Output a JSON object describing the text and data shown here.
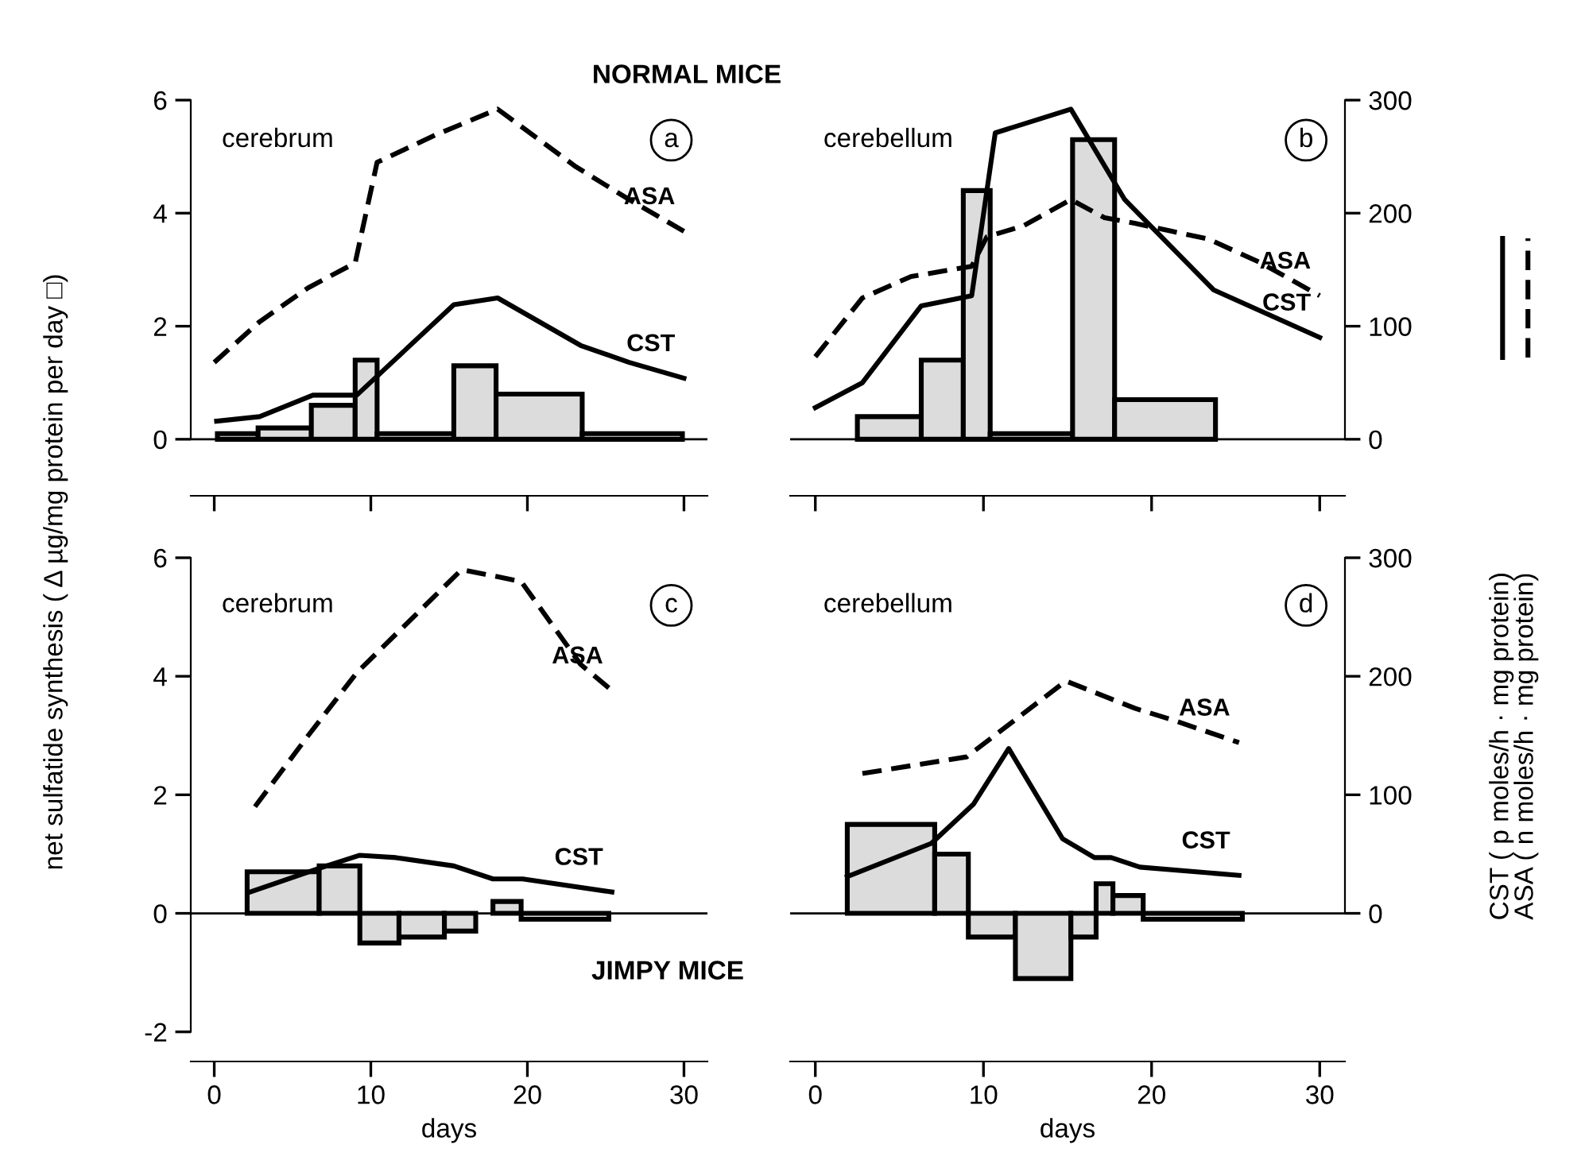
{
  "chart_data": [
    {
      "type": "histogram",
      "title": "NORMAL MICE",
      "subtitle": "cerebrum",
      "annotations": [
        "a"
      ],
      "ylabel": "net sulfatide synthesis ( Δ µg/mg protein per day □)",
      "color": "#dcdcdc",
      "bins": [
        0.2,
        2.8,
        6.2,
        9.0,
        10.4,
        15.3,
        18.0,
        23.5,
        29.9
      ],
      "values": [
        0.1,
        0.2,
        0.6,
        1.4,
        0.1,
        1.3,
        0.8,
        0.1
      ],
      "xlim": [
        -1.5,
        31.5
      ],
      "xticks": [
        0,
        10,
        20,
        30
      ],
      "ylim": [
        -1,
        6
      ],
      "yticks": [
        0,
        2,
        4,
        6
      ],
      "y2lim": [
        -50,
        300
      ],
      "ref_lines": [
        {
          "axis": "y",
          "value": 0
        }
      ],
      "tick_labels": "y",
      "series": [
        {
          "name": "CST",
          "type": "line",
          "axis": "y2",
          "color": "#000000",
          "line_style": "solid",
          "x": [
            0.15,
            2.9,
            6.3,
            9.1,
            15.3,
            18.1,
            23.4,
            26.5,
            30.0
          ],
          "values": [
            16,
            20,
            39,
            39,
            119,
            125,
            83,
            68,
            54
          ]
        },
        {
          "name": "ASA",
          "type": "line",
          "axis": "y2",
          "color": "#000000",
          "line_style": "dashed",
          "x": [
            0,
            2.9,
            6.0,
            9.0,
            10.4,
            14.1,
            18.1,
            23.1,
            26.5,
            30.0
          ],
          "values": [
            68,
            104,
            134,
            156,
            245,
            269,
            292,
            241,
            212,
            184
          ]
        }
      ]
    },
    {
      "type": "histogram",
      "subtitle": "cerebellum",
      "annotations": [
        "b"
      ],
      "y2label": "CST ( p moles/h · mg protein)\nASA ( n moles/h · mg protein)",
      "color": "#dcdcdc",
      "bins": [
        2.5,
        6.3,
        8.8,
        10.4,
        15.3,
        17.8,
        23.8
      ],
      "values": [
        0.4,
        1.4,
        4.4,
        0.1,
        5.3,
        0.7
      ],
      "xlim": [
        -1.5,
        31.5
      ],
      "xticks": [
        0,
        10,
        20,
        30
      ],
      "ylim": [
        -1,
        6
      ],
      "y2lim": [
        -50,
        300
      ],
      "y2ticks": [
        0,
        100,
        200,
        300
      ],
      "ref_lines": [
        {
          "axis": "y",
          "value": 0
        }
      ],
      "tick_labels": "y",
      "series": [
        {
          "name": "CST",
          "type": "line",
          "axis": "y2",
          "color": "#000000",
          "line_style": "solid",
          "x": [
            0,
            2.8,
            6.3,
            9.3,
            10.7,
            15.2,
            18.4,
            23.7,
            30
          ],
          "values": [
            28,
            50,
            118,
            127,
            271,
            292,
            212,
            132,
            90
          ]
        },
        {
          "name": "ASA",
          "type": "line",
          "axis": "y2",
          "color": "#000000",
          "line_style": "dashed",
          "x": [
            0,
            2.8,
            5.7,
            9.3,
            10.2,
            12.4,
            15.2,
            17.2,
            19.0,
            21.2,
            23.4,
            26.5,
            30
          ],
          "values": [
            73,
            125,
            144,
            153,
            179,
            189,
            212,
            196,
            191,
            184,
            177,
            156,
            127
          ]
        }
      ]
    },
    {
      "type": "histogram",
      "title": "JIMPY MICE",
      "subtitle": "cerebrum",
      "annotations": [
        "c"
      ],
      "xlabel": "days",
      "color": "#dcdcdc",
      "bins": [
        2.1,
        6.7,
        9.3,
        11.8,
        14.7,
        16.7,
        17.8,
        19.6,
        25.2
      ],
      "values": [
        0.7,
        0.8,
        -0.5,
        -0.4,
        -0.3,
        null,
        0.2,
        -0.1
      ],
      "xlim": [
        -1.5,
        31.5
      ],
      "xticks": [
        0,
        10,
        20,
        30
      ],
      "ylim": [
        -2.5,
        6
      ],
      "yticks": [
        -2,
        0,
        2,
        4,
        6
      ],
      "y2lim": [
        -125,
        300
      ],
      "ref_lines": [
        {
          "axis": "y",
          "value": 0
        }
      ],
      "series": [
        {
          "name": "CST",
          "type": "line",
          "axis": "y2",
          "color": "#000000",
          "line_style": "solid",
          "x": [
            2.3,
            6.7,
            9.3,
            11.6,
            15.3,
            17.8,
            19.7,
            25.4
          ],
          "values": [
            18,
            38,
            49,
            47,
            40,
            29,
            29,
            18
          ]
        },
        {
          "name": "ASA",
          "type": "line",
          "axis": "y2",
          "color": "#000000",
          "line_style": "dashed",
          "x": [
            2.6,
            6.0,
            9.1,
            15.8,
            19.6,
            23.4,
            25.4
          ],
          "values": [
            90,
            150,
            203,
            290,
            280,
            210,
            188
          ]
        }
      ]
    },
    {
      "type": "histogram",
      "subtitle": "cerebellum",
      "annotations": [
        "d"
      ],
      "xlabel": "days",
      "color": "#dcdcdc",
      "bins": [
        1.9,
        7.1,
        9.1,
        11.9,
        15.2,
        16.7,
        17.7,
        19.5,
        25.4
      ],
      "values": [
        1.5,
        1.0,
        -0.4,
        -1.1,
        -0.4,
        0.5,
        0.3,
        -0.1
      ],
      "xlim": [
        -1.5,
        31.5
      ],
      "xticks": [
        0,
        10,
        20,
        30
      ],
      "ylim": [
        -2.5,
        6
      ],
      "y2lim": [
        -125,
        300
      ],
      "y2ticks": [
        0,
        100,
        200,
        300
      ],
      "ref_lines": [
        {
          "axis": "y",
          "value": 0
        }
      ],
      "series": [
        {
          "name": "CST",
          "type": "line",
          "axis": "y2",
          "color": "#000000",
          "line_style": "solid",
          "x": [
            1.9,
            6.9,
            9.4,
            11.5,
            14.7,
            16.6,
            17.6,
            19.3,
            25.2
          ],
          "values": [
            31,
            59,
            92,
            139,
            63,
            47,
            47,
            39,
            32
          ]
        },
        {
          "name": "ASA",
          "type": "line",
          "axis": "y2",
          "color": "#000000",
          "line_style": "dashed",
          "x": [
            2.8,
            9.0,
            14.9,
            19.0,
            21.5,
            25.2
          ],
          "values": [
            118,
            132,
            196,
            173,
            162,
            144
          ]
        }
      ]
    }
  ]
}
